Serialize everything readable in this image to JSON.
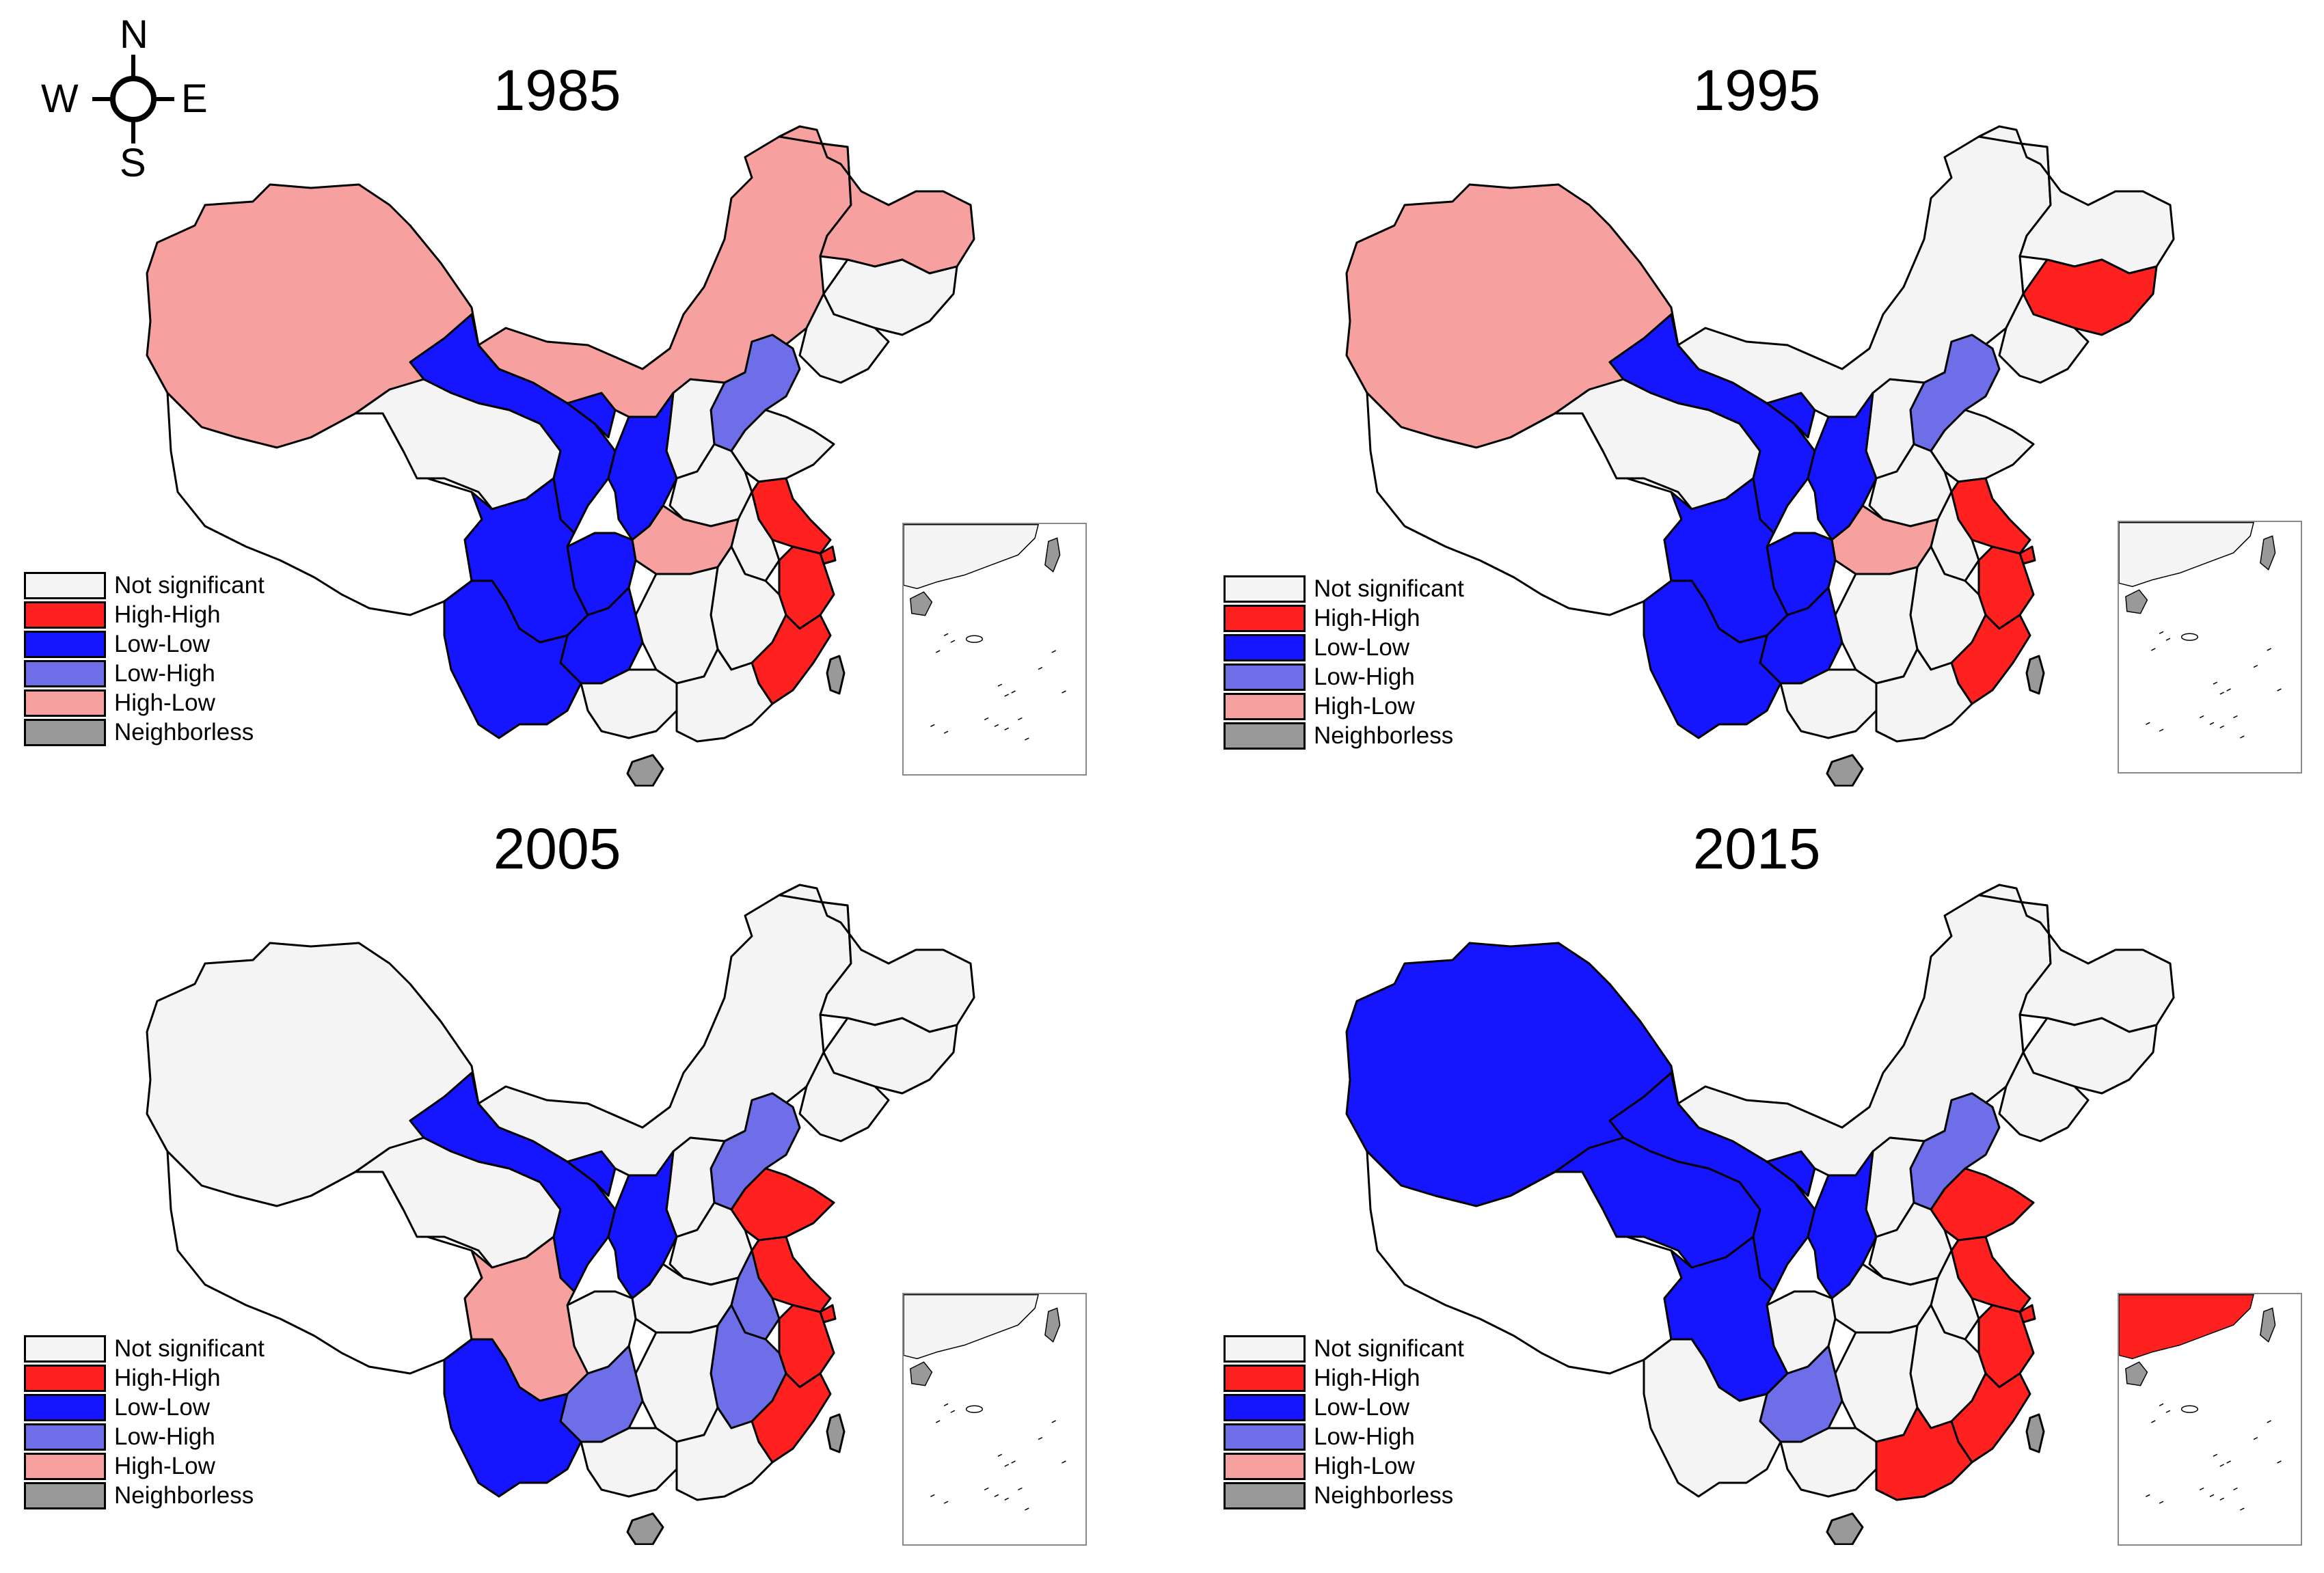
{
  "compass": {
    "north": "N",
    "south": "S",
    "east": "E",
    "west": "W"
  },
  "legend_colors": {
    "Not significant": "#f4f4f4",
    "High-High": "#ff2020",
    "Low-Low": "#1515ff",
    "Low-High": "#6e6ee8",
    "High-Low": "#f7a0a0",
    "Neighborless": "#999999"
  },
  "legend_labels": [
    "Not significant",
    "High-High",
    "Low-Low",
    "Low-High",
    "High-Low",
    "Neighborless"
  ],
  "panels": [
    {
      "title": "1985",
      "regions": {
        "xinjiang": "High-Low",
        "tibet": "none",
        "qinghai": "Not significant",
        "gansu": "Low-Low",
        "inner_mongolia": "High-Low",
        "heilongjiang": "High-Low",
        "jilin": "Not significant",
        "liaoning": "Not significant",
        "hebei": "Low-High",
        "shanxi": "Not significant",
        "shaanxi": "Low-Low",
        "ningxia": "Low-Low",
        "sichuan": "Low-Low",
        "chongqing": "Low-Low",
        "guizhou": "Low-Low",
        "yunnan": "Low-Low",
        "hubei": "High-Low",
        "henan": "Not significant",
        "shandong": "Not significant",
        "jiangsu": "High-High",
        "shanghai": "High-High",
        "zhejiang": "High-High",
        "anhui": "Not significant",
        "jiangxi": "Not significant",
        "fujian": "High-High",
        "hunan": "Not significant",
        "guangxi": "Not significant",
        "guangdong": "Not significant",
        "hainan": "Neighborless",
        "taiwan": "Neighborless",
        "inset_coast": "Not significant"
      }
    },
    {
      "title": "1995",
      "regions": {
        "xinjiang": "High-Low",
        "tibet": "none",
        "qinghai": "Not significant",
        "gansu": "Low-Low",
        "inner_mongolia": "Not significant",
        "heilongjiang": "Not significant",
        "jilin": "High-High",
        "liaoning": "Not significant",
        "hebei": "Low-High",
        "shanxi": "Not significant",
        "shaanxi": "Low-Low",
        "ningxia": "Low-Low",
        "sichuan": "Low-Low",
        "chongqing": "Low-Low",
        "guizhou": "Low-Low",
        "yunnan": "Low-Low",
        "hubei": "High-Low",
        "henan": "Not significant",
        "shandong": "Not significant",
        "jiangsu": "High-High",
        "shanghai": "High-High",
        "zhejiang": "High-High",
        "anhui": "Not significant",
        "jiangxi": "Not significant",
        "fujian": "High-High",
        "hunan": "Not significant",
        "guangxi": "Not significant",
        "guangdong": "Not significant",
        "hainan": "Neighborless",
        "taiwan": "Neighborless",
        "inset_coast": "Not significant"
      }
    },
    {
      "title": "2005",
      "regions": {
        "xinjiang": "Not significant",
        "tibet": "none",
        "qinghai": "Not significant",
        "gansu": "Low-Low",
        "inner_mongolia": "Not significant",
        "heilongjiang": "Not significant",
        "jilin": "Not significant",
        "liaoning": "Not significant",
        "hebei": "Low-High",
        "shanxi": "Not significant",
        "shaanxi": "Low-Low",
        "ningxia": "Low-Low",
        "sichuan": "High-Low",
        "chongqing": "Not significant",
        "guizhou": "Low-High",
        "yunnan": "Low-Low",
        "hubei": "Not significant",
        "henan": "Not significant",
        "shandong": "High-High",
        "jiangsu": "High-High",
        "shanghai": "High-High",
        "zhejiang": "High-High",
        "anhui": "Low-High",
        "jiangxi": "Low-High",
        "fujian": "High-High",
        "hunan": "Not significant",
        "guangxi": "Not significant",
        "guangdong": "Not significant",
        "hainan": "Neighborless",
        "taiwan": "Neighborless",
        "inset_coast": "Not significant"
      }
    },
    {
      "title": "2015",
      "regions": {
        "xinjiang": "Low-Low",
        "tibet": "none",
        "qinghai": "Low-Low",
        "gansu": "Low-Low",
        "inner_mongolia": "Not significant",
        "heilongjiang": "Not significant",
        "jilin": "Not significant",
        "liaoning": "Not significant",
        "hebei": "Low-High",
        "shanxi": "Not significant",
        "shaanxi": "Low-Low",
        "ningxia": "Low-Low",
        "sichuan": "Low-Low",
        "chongqing": "Not significant",
        "guizhou": "Low-High",
        "yunnan": "Not significant",
        "hubei": "Not significant",
        "henan": "Not significant",
        "shandong": "High-High",
        "jiangsu": "High-High",
        "shanghai": "High-High",
        "zhejiang": "High-High",
        "anhui": "Not significant",
        "jiangxi": "Not significant",
        "fujian": "High-High",
        "hunan": "Not significant",
        "guangxi": "Not significant",
        "guangdong": "High-High",
        "hainan": "Neighborless",
        "taiwan": "Neighborless",
        "inset_coast": "High-High"
      }
    }
  ]
}
